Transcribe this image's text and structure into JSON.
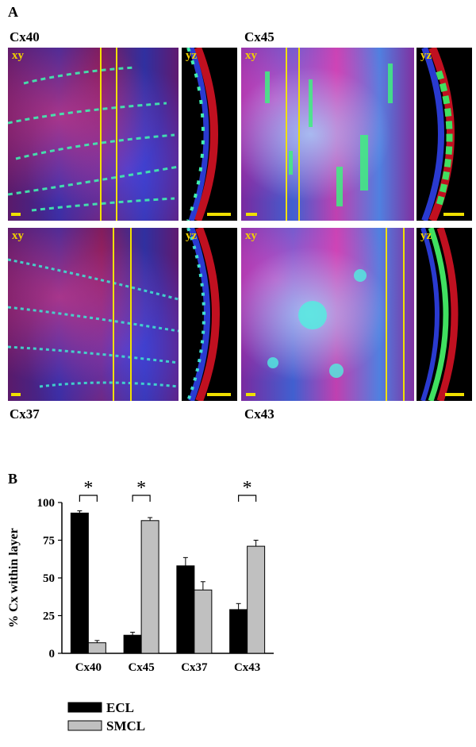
{
  "panel_a": {
    "letter": "A",
    "labels": {
      "cx40": "Cx40",
      "cx45": "Cx45",
      "cx37": "Cx37",
      "cx43": "Cx43"
    },
    "view_tags": {
      "xy": "xy",
      "yz": "yz"
    }
  },
  "panel_b": {
    "letter": "B",
    "significance_marker": "*"
  },
  "chart_data": {
    "type": "bar",
    "categories": [
      "Cx40",
      "Cx45",
      "Cx37",
      "Cx43"
    ],
    "series": [
      {
        "name": "ECL",
        "values": [
          93,
          12,
          58,
          29
        ],
        "errors": [
          1.5,
          2,
          5.5,
          4
        ],
        "color": "#000000"
      },
      {
        "name": "SMCL",
        "values": [
          7,
          88,
          42,
          71
        ],
        "errors": [
          1.5,
          2,
          5.5,
          4
        ],
        "color": "#c0c0c0"
      }
    ],
    "ylabel": "% Cx within layer",
    "ylim": [
      0,
      100
    ],
    "yticks": [
      0,
      25,
      50,
      75,
      100
    ],
    "significant": [
      true,
      true,
      false,
      true
    ],
    "legend_position": "bottom-left"
  }
}
